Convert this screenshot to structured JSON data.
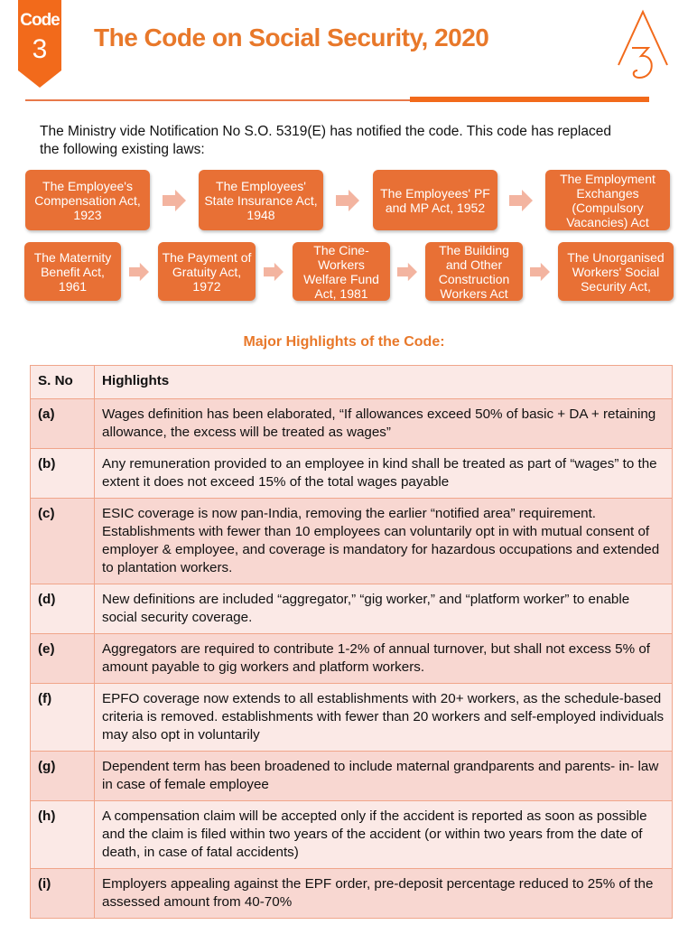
{
  "header": {
    "badge_word": "Code",
    "badge_number": "3",
    "title": "The Code on Social Security, 2020"
  },
  "intro": "The Ministry vide Notification No S.O. 5319(E) has notified the code. This code has replaced the following existing laws:",
  "laws_row1": [
    "The Employee's Compensation Act, 1923",
    "The Employees' State Insurance Act, 1948",
    "The Employees' PF and MP Act, 1952",
    "The Employment Exchanges (Compulsory Vacancies) Act"
  ],
  "laws_row2": [
    "The Maternity Benefit Act, 1961",
    "The Payment of Gratuity Act, 1972",
    "The Cine-Workers Welfare Fund Act, 1981",
    "The Building and Other Construction Workers Act",
    "The Unorganised Workers' Social Security Act,"
  ],
  "highlights_title": "Major Highlights of the Code:",
  "table": {
    "headers": [
      "S. No",
      "Highlights"
    ],
    "rows": [
      [
        "(a)",
        "Wages definition has been elaborated, “If allowances exceed 50% of basic + DA + retaining allowance, the excess will be treated as wages”"
      ],
      [
        "(b)",
        "Any remuneration provided to an employee in kind shall be treated as part of “wages” to the extent it does not exceed 15% of the total wages payable"
      ],
      [
        "(c)",
        "ESIC coverage is now pan-India, removing the earlier “notified area” requirement. Establishments with fewer than 10 employees can voluntarily opt in with mutual consent of employer & employee, and coverage is mandatory for hazardous occupations and extended to plantation workers."
      ],
      [
        "(d)",
        "New definitions are included “aggregator,” “gig worker,” and “platform worker” to enable social security coverage."
      ],
      [
        "(e)",
        "Aggregators are required to contribute 1-2% of annual turnover, but shall not excess 5% of amount payable to gig workers and platform workers."
      ],
      [
        "(f)",
        "EPFO coverage now extends to all establishments with 20+ workers, as the schedule-based criteria is removed. establishments with fewer than 20 workers and self-employed individuals may also opt in voluntarily"
      ],
      [
        "(g)",
        "Dependent term has been broadened to include maternal grandparents and parents- in- law in case of female employee"
      ],
      [
        "(h)",
        "A compensation claim will be accepted only if the accident is reported as soon as possible and the claim is filed within two years of the accident (or within two years from the date of death, in case of fatal accidents)"
      ],
      [
        "(i)",
        "Employers appealing against the EPF order, pre-deposit percentage reduced to 25% of the assessed amount from 40-70%"
      ]
    ]
  },
  "colors": {
    "accent": "#e8782a",
    "box": "#e87035",
    "row_dark": "#f8d7d1",
    "row_light": "#fbe9e6",
    "border": "#f0a58a"
  }
}
